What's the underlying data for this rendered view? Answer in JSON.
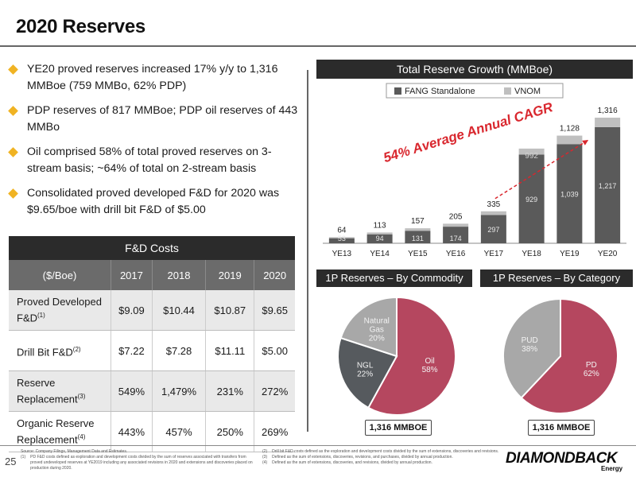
{
  "title": "2020 Reserves",
  "bullets": [
    "YE20 proved reserves increased 17% y/y to 1,316 MMBoe (759 MMBo, 62% PDP)",
    "PDP reserves of 817 MMBoe; PDP oil reserves of 443 MMBo",
    "Oil comprised 58% of total proved reserves on 3-stream basis; ~64% of total on 2-stream basis",
    "Consolidated proved developed F&D for 2020 was $9.65/boe with drill bit F&D of $5.00"
  ],
  "fd_table": {
    "title": "F&D Costs",
    "headers": [
      "($/Boe)",
      "2017",
      "2018",
      "2019",
      "2020"
    ],
    "rows": [
      {
        "label": "Proved Developed F&D",
        "sup": "(1)",
        "values": [
          "$9.09",
          "$10.44",
          "$10.87",
          "$9.65"
        ]
      },
      {
        "label": "Drill Bit F&D",
        "sup": "(2)",
        "values": [
          "$7.22",
          "$7.28",
          "$11.11",
          "$5.00"
        ]
      },
      {
        "label": "Reserve Replacement",
        "sup": "(3)",
        "values": [
          "549%",
          "1,479%",
          "231%",
          "272%"
        ]
      },
      {
        "label": "Organic Reserve Replacement",
        "sup": "(4)",
        "values": [
          "443%",
          "457%",
          "250%",
          "269%"
        ]
      }
    ]
  },
  "cagr_label": "54% Average Annual CAGR",
  "commodity_section": {
    "title": "1P Reserves – By Commodity",
    "total": "1,316 MMBOE"
  },
  "category_section": {
    "title": "1P Reserves – By Category",
    "total": "1,316 MMBOE"
  },
  "chart_data": [
    {
      "type": "bar",
      "title": "Total Reserve Growth (MMBoe)",
      "categories": [
        "YE13",
        "YE14",
        "YE15",
        "YE16",
        "YE17",
        "YE18",
        "YE19",
        "YE20"
      ],
      "series": [
        {
          "name": "FANG Standalone",
          "values": [
            53,
            94,
            131,
            174,
            297,
            929,
            1039,
            1217
          ],
          "color": "#5a5a5a"
        },
        {
          "name": "VNOM",
          "values": [
            11,
            19,
            26,
            31,
            38,
            63,
            89,
            99
          ],
          "color": "#bfbfbf"
        }
      ],
      "stack_labels": [
        "FANG Standalone",
        "VNOM"
      ],
      "totals": [
        "64",
        "113",
        "157",
        "205",
        "335",
        "992",
        "1,128",
        "1,316"
      ],
      "segment_labels": [
        "53",
        "94",
        "131",
        "174",
        "297",
        "929",
        "1,039",
        "1,217"
      ],
      "legend_position": "top",
      "ylim": [
        0,
        1316
      ]
    },
    {
      "type": "pie",
      "title": "1P Reserves – By Commodity",
      "slices": [
        {
          "label": "Oil",
          "pct_label": "58%",
          "value": 58,
          "color": "#b5475f"
        },
        {
          "label": "NGL",
          "pct_label": "22%",
          "value": 22,
          "color": "#565a5e"
        },
        {
          "label": "Natural Gas",
          "pct_label": "20%",
          "value": 20,
          "color": "#a8a8a8"
        }
      ]
    },
    {
      "type": "pie",
      "title": "1P Reserves – By Category",
      "slices": [
        {
          "label": "PD",
          "pct_label": "62%",
          "value": 62,
          "color": "#b5475f"
        },
        {
          "label": "PUD",
          "pct_label": "38%",
          "value": 38,
          "color": "#a8a8a8"
        }
      ]
    }
  ],
  "footer": {
    "page_number": "25",
    "source": "Source: Company Filings, Management Data and Estimates.",
    "notes_left": [
      {
        "num": "(1)",
        "text": "PD F&D costs defined as exploration and development costs divided by the sum of reserves associated with transfers from proved undeveloped reserves at YE2019 including any associated revisions in 2020 and extensions and discoveries placed on production during 2020."
      }
    ],
    "notes_right": [
      {
        "num": "(2)",
        "text": "Drill bit F&D costs defined as the exploration and development costs divided by the sum of extensions, discoveries and revisions."
      },
      {
        "num": "(3)",
        "text": "Defined as the sum of extensions, discoveries, revisions, and purchases, divided by annual production."
      },
      {
        "num": "(4)",
        "text": "Defined as the sum of extensions, discoveries, and revisions, divided by annual production."
      }
    ],
    "logo": "DIAMONDBACK",
    "logo_sub": "Energy"
  }
}
